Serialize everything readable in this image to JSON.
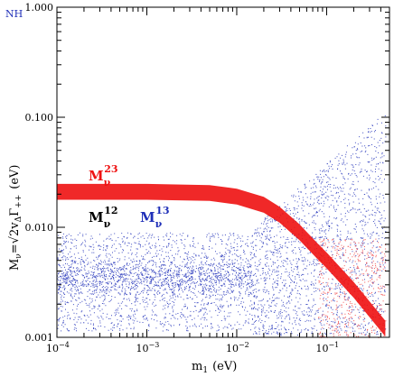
{
  "chart_data": {
    "type": "scatter",
    "corner_tag": "NH",
    "xlabel": {
      "main": "m",
      "sub": "1",
      "unit": "(eV)"
    },
    "ylabel": {
      "M": "M",
      "nu": "ν",
      "eq": "=",
      "sqrt2": "√2",
      "v": "v",
      "delta": "Δ",
      "gamma": "Γ",
      "pp": "++",
      "unit": "(eV)"
    },
    "x_scale": "log",
    "y_scale": "log",
    "xlim": [
      0.0001,
      0.5
    ],
    "ylim": [
      0.001,
      1.0
    ],
    "x_ticks": [
      {
        "value": 0.0001,
        "base": "10",
        "exp": "−4"
      },
      {
        "value": 0.001,
        "base": "10",
        "exp": "−3"
      },
      {
        "value": 0.01,
        "base": "10",
        "exp": "−2"
      },
      {
        "value": 0.1,
        "base": "10",
        "exp": "−1"
      }
    ],
    "y_ticks": [
      {
        "value": 0.001,
        "label": "0.001"
      },
      {
        "value": 0.01,
        "label": "0.010"
      },
      {
        "value": 0.1,
        "label": "0.100"
      },
      {
        "value": 1.0,
        "label": "1.000"
      }
    ],
    "grid": false,
    "series": [
      {
        "name": {
          "base": "M",
          "sub": "ν",
          "sup": "13"
        },
        "color": "#1f2fb8",
        "shape": "scattered band",
        "points": [
          [
            0.0001,
            0.0012
          ],
          [
            0.0001,
            0.009
          ],
          [
            0.001,
            0.0012
          ],
          [
            0.001,
            0.009
          ],
          [
            0.01,
            0.0012
          ],
          [
            0.01,
            0.009
          ],
          [
            0.03,
            0.001
          ],
          [
            0.03,
            0.013
          ],
          [
            0.06,
            0.001
          ],
          [
            0.06,
            0.03
          ],
          [
            0.1,
            0.001
          ],
          [
            0.1,
            0.05
          ],
          [
            0.2,
            0.001
          ],
          [
            0.2,
            0.07
          ],
          [
            0.45,
            0.0015
          ],
          [
            0.45,
            0.1
          ]
        ]
      },
      {
        "name": {
          "base": "M",
          "sub": "ν",
          "sup": "23"
        },
        "color": "#ee1111",
        "shape": "narrow band",
        "points": [
          [
            0.0001,
            0.021
          ],
          [
            0.001,
            0.021
          ],
          [
            0.005,
            0.0205
          ],
          [
            0.01,
            0.019
          ],
          [
            0.02,
            0.016
          ],
          [
            0.03,
            0.013
          ],
          [
            0.05,
            0.009
          ],
          [
            0.08,
            0.006
          ],
          [
            0.1,
            0.005
          ],
          [
            0.2,
            0.0027
          ],
          [
            0.3,
            0.0018
          ],
          [
            0.45,
            0.0012
          ]
        ]
      },
      {
        "name": {
          "base": "M",
          "sub": "ν",
          "sup": "12"
        },
        "color": "#000000",
        "shape": "label only",
        "points": []
      }
    ]
  }
}
